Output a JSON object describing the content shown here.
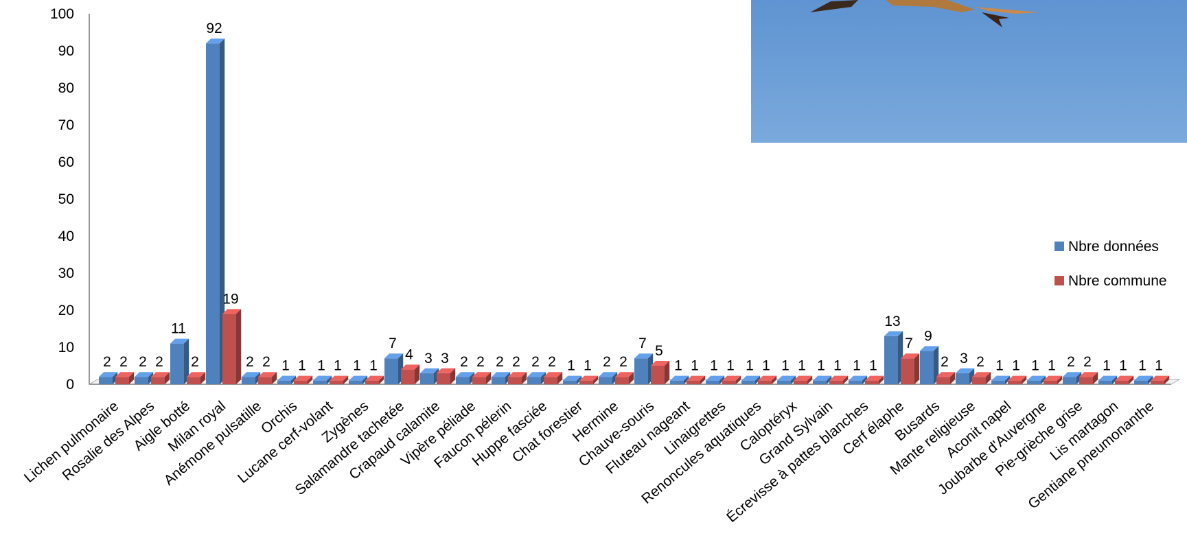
{
  "chart_data": {
    "type": "bar",
    "categories": [
      "Lichen pulmonaire",
      "Rosalie des Alpes",
      "Aigle botté",
      "Milan royal",
      "Anémone pulsatille",
      "Orchis",
      "Lucane cerf-volant",
      "Zygènes",
      "Salamandre tachetée",
      "Crapaud calamite",
      "Vipère péliade",
      "Faucon pélerin",
      "Huppe fasciée",
      "Chat forestier",
      "Hermine",
      "Chauve-souris",
      "Fluteau nageant",
      "Linaigrettes",
      "Renoncules aquatiques",
      "Caloptéryx",
      "Grand Sylvain",
      "Écrevisse à pattes blanches",
      "Cerf élaphe",
      "Busards",
      "Mante religieuse",
      "Aconit napel",
      "Joubarbe d'Auvergne",
      "Pie-grièche grise",
      "Lis martagon",
      "Gentiane pneumonanthe"
    ],
    "series": [
      {
        "name": "Nbre données",
        "color": "#4F81BD",
        "values": [
          2,
          2,
          11,
          92,
          2,
          1,
          1,
          1,
          7,
          3,
          2,
          2,
          2,
          1,
          2,
          7,
          1,
          1,
          1,
          1,
          1,
          1,
          13,
          9,
          3,
          1,
          1,
          2,
          1,
          1
        ]
      },
      {
        "name": "Nbre commune",
        "color": "#C0504D",
        "values": [
          2,
          2,
          2,
          19,
          2,
          1,
          1,
          1,
          4,
          3,
          2,
          2,
          2,
          1,
          2,
          5,
          1,
          1,
          1,
          1,
          1,
          1,
          7,
          2,
          2,
          1,
          1,
          2,
          1,
          1
        ]
      }
    ],
    "ylim": [
      0,
      100
    ],
    "yticks": [
      0,
      10,
      20,
      30,
      40,
      50,
      60,
      70,
      80,
      90,
      100
    ],
    "legend": "right",
    "grid": false
  },
  "photo": {
    "description_icon": "milan-royal-photo",
    "sky_color": "#6E9FD6"
  }
}
